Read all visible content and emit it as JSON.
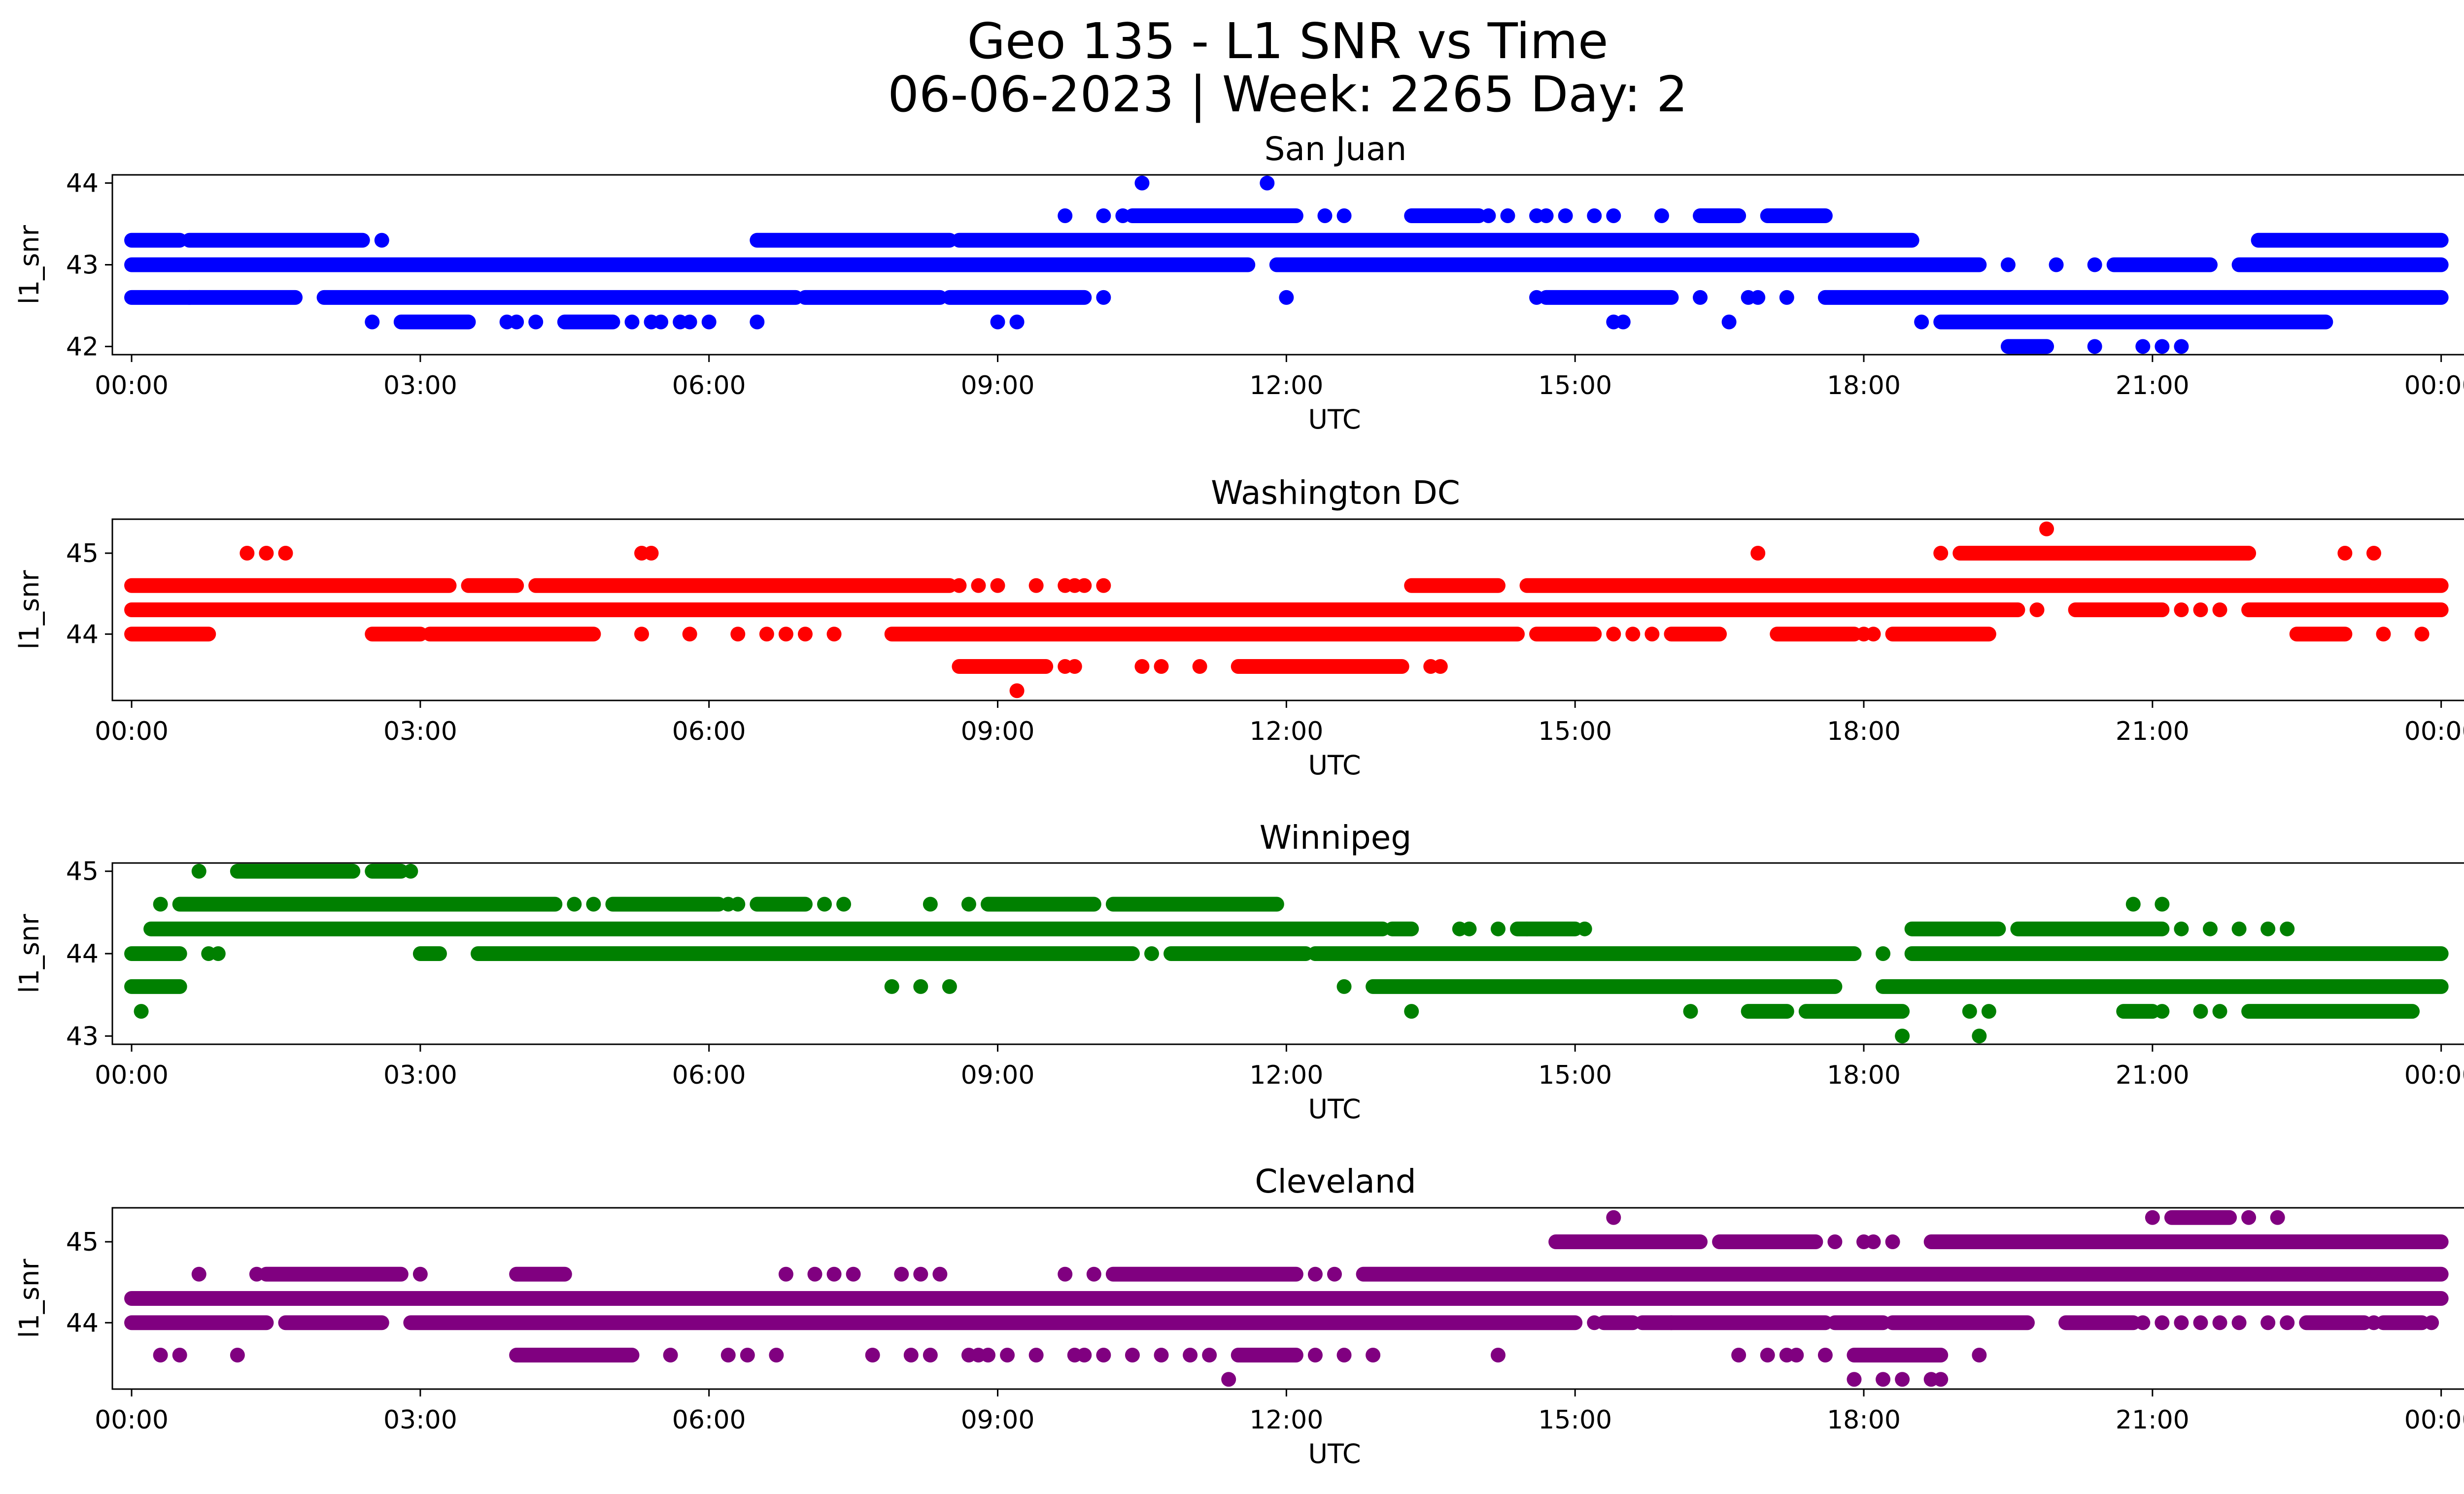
{
  "figure": {
    "title_line1": "Geo 135 - L1 SNR vs Time",
    "title_line2": "06-06-2023 | Week: 2265 Day: 2"
  },
  "chart_data": [
    {
      "type": "scatter",
      "title": "San Juan",
      "xlabel": "UTC",
      "ylabel": "l1_snr",
      "color": "#0000ff",
      "xlim": [
        -0.2,
        25.2
      ],
      "ylim": [
        41.9,
        44.1
      ],
      "xticks": [
        "00:00",
        "03:00",
        "06:00",
        "09:00",
        "12:00",
        "15:00",
        "18:00",
        "21:00",
        "00:00"
      ],
      "yticks": [
        42,
        43,
        44
      ],
      "levels": [
        {
          "y": 43.0,
          "intervals": [
            [
              0.0,
              11.6
            ],
            [
              11.9,
              19.2
            ],
            [
              20.6,
              21.6
            ],
            [
              21.9,
              24.0
            ]
          ],
          "points": [
            19.5,
            20.0,
            20.4
          ]
        },
        {
          "y": 42.6,
          "intervals": [
            [
              0.0,
              0.6
            ],
            [
              0.6,
              1.7
            ],
            [
              2.0,
              6.9
            ],
            [
              7.0,
              8.4
            ],
            [
              8.5,
              9.9
            ],
            [
              14.7,
              16.0
            ],
            [
              17.6,
              24.0
            ]
          ],
          "points": [
            10.1,
            12.0,
            14.6,
            16.3,
            16.8,
            16.9,
            17.2
          ]
        },
        {
          "y": 43.3,
          "intervals": [
            [
              0.0,
              0.5
            ],
            [
              0.6,
              2.4
            ],
            [
              6.5,
              8.5
            ],
            [
              8.6,
              18.5
            ],
            [
              22.1,
              24.0
            ]
          ],
          "points": [
            2.6
          ]
        },
        {
          "y": 43.6,
          "intervals": [
            [
              10.4,
              12.1
            ],
            [
              13.3,
              14.0
            ],
            [
              16.3,
              16.7
            ],
            [
              17.0,
              17.6
            ]
          ],
          "points": [
            9.7,
            10.1,
            10.3,
            12.4,
            12.6,
            13.5,
            14.1,
            14.3,
            14.6,
            14.7,
            14.9,
            15.2,
            15.4,
            15.9
          ]
        },
        {
          "y": 42.3,
          "intervals": [
            [
              2.8,
              3.5
            ],
            [
              4.5,
              5.0
            ],
            [
              18.8,
              22.8
            ]
          ],
          "points": [
            2.5,
            3.9,
            4.0,
            4.2,
            5.2,
            5.4,
            5.5,
            5.7,
            5.8,
            6.0,
            6.5,
            9.0,
            9.2,
            15.4,
            15.5,
            16.6,
            18.6
          ]
        },
        {
          "y": 42.0,
          "intervals": [
            [
              19.5,
              19.9
            ]
          ],
          "points": [
            20.4,
            20.9,
            21.1,
            21.3
          ]
        },
        {
          "y": 44.0,
          "intervals": [],
          "points": [
            10.5,
            11.8
          ]
        }
      ]
    },
    {
      "type": "scatter",
      "title": "Washington DC",
      "xlabel": "UTC",
      "ylabel": "l1_snr",
      "color": "#ff0000",
      "xlim": [
        -0.2,
        25.2
      ],
      "ylim": [
        43.18,
        45.42
      ],
      "xticks": [
        "00:00",
        "03:00",
        "06:00",
        "09:00",
        "12:00",
        "15:00",
        "18:00",
        "21:00",
        "00:00"
      ],
      "yticks": [
        44,
        45
      ],
      "levels": [
        {
          "y": 44.3,
          "intervals": [
            [
              0.0,
              19.6
            ],
            [
              20.2,
              21.1
            ],
            [
              22.0,
              24.0
            ]
          ],
          "points": [
            19.8,
            21.3,
            21.5,
            21.7
          ]
        },
        {
          "y": 44.6,
          "intervals": [
            [
              0.0,
              3.3
            ],
            [
              3.5,
              4.0
            ],
            [
              4.2,
              8.5
            ],
            [
              13.3,
              14.2
            ],
            [
              14.5,
              24.0
            ]
          ],
          "points": [
            8.6,
            8.8,
            9.0,
            9.4,
            9.7,
            9.8,
            9.9,
            10.1
          ]
        },
        {
          "y": 44.0,
          "intervals": [
            [
              0.0,
              0.8
            ],
            [
              2.5,
              3.0
            ],
            [
              3.1,
              4.8
            ],
            [
              7.9,
              14.4
            ],
            [
              14.6,
              15.2
            ],
            [
              16.0,
              16.5
            ],
            [
              17.1,
              17.9
            ],
            [
              18.3,
              19.3
            ],
            [
              22.5,
              23.0
            ]
          ],
          "points": [
            5.3,
            5.8,
            6.3,
            6.6,
            6.8,
            7.0,
            7.3,
            15.4,
            15.6,
            15.8,
            18.0,
            18.1,
            23.4,
            23.8
          ]
        },
        {
          "y": 45.0,
          "intervals": [
            [
              19.0,
              22.0
            ]
          ],
          "points": [
            1.2,
            1.4,
            1.6,
            5.3,
            5.4,
            16.9,
            18.8,
            23.0,
            23.3
          ]
        },
        {
          "y": 43.6,
          "intervals": [
            [
              8.6,
              9.5
            ],
            [
              11.5,
              13.2
            ]
          ],
          "points": [
            9.7,
            9.8,
            10.5,
            10.7,
            11.1,
            13.5,
            13.6
          ]
        },
        {
          "y": 43.3,
          "intervals": [],
          "points": [
            9.2
          ]
        },
        {
          "y": 45.3,
          "intervals": [],
          "points": [
            19.9
          ]
        }
      ]
    },
    {
      "type": "scatter",
      "title": "Winnipeg",
      "xlabel": "UTC",
      "ylabel": "l1_snr",
      "color": "#008000",
      "xlim": [
        -0.2,
        25.2
      ],
      "ylim": [
        42.9,
        45.1
      ],
      "xticks": [
        "00:00",
        "03:00",
        "06:00",
        "09:00",
        "12:00",
        "15:00",
        "18:00",
        "21:00",
        "00:00"
      ],
      "yticks": [
        43,
        44,
        45
      ],
      "levels": [
        {
          "y": 44.3,
          "intervals": [
            [
              0.2,
              13.0
            ],
            [
              13.1,
              13.3
            ],
            [
              14.4,
              15.0
            ],
            [
              18.5,
              19.4
            ],
            [
              19.6,
              21.1
            ]
          ],
          "points": [
            13.8,
            13.9,
            14.2,
            14.5,
            15.1,
            21.3,
            21.6,
            21.9,
            22.2,
            22.4
          ]
        },
        {
          "y": 44.0,
          "intervals": [
            [
              0.0,
              0.5
            ],
            [
              3.0,
              3.2
            ],
            [
              3.6,
              10.4
            ],
            [
              10.8,
              12.2
            ],
            [
              12.3,
              17.9
            ],
            [
              18.5,
              24.0
            ]
          ],
          "points": [
            0.8,
            0.9,
            10.6,
            11.2,
            11.4,
            18.2
          ]
        },
        {
          "y": 44.6,
          "intervals": [
            [
              0.5,
              4.4
            ],
            [
              5.0,
              6.1
            ],
            [
              6.5,
              7.0
            ],
            [
              8.9,
              10.0
            ],
            [
              10.2,
              11.9
            ]
          ],
          "points": [
            0.3,
            4.6,
            4.8,
            6.2,
            6.3,
            7.2,
            7.4,
            8.3,
            8.7,
            20.8,
            21.1
          ]
        },
        {
          "y": 45.0,
          "intervals": [
            [
              1.1,
              2.3
            ],
            [
              2.5,
              2.8
            ]
          ],
          "points": [
            0.7,
            2.9
          ]
        },
        {
          "y": 43.6,
          "intervals": [
            [
              0.0,
              0.5
            ],
            [
              12.9,
              17.7
            ],
            [
              18.2,
              24.0
            ]
          ],
          "points": [
            7.9,
            8.2,
            8.5,
            12.6
          ]
        },
        {
          "y": 43.3,
          "intervals": [
            [
              16.8,
              17.2
            ],
            [
              17.4,
              18.4
            ],
            [
              20.7,
              21.0
            ],
            [
              22.0,
              23.7
            ]
          ],
          "points": [
            0.1,
            13.3,
            16.2,
            19.1,
            19.3,
            21.1,
            21.5,
            21.7
          ]
        },
        {
          "y": 43.0,
          "intervals": [],
          "points": [
            18.4,
            19.2
          ]
        }
      ]
    },
    {
      "type": "scatter",
      "title": "Cleveland",
      "xlabel": "UTC",
      "ylabel": "l1_snr",
      "color": "#800080",
      "xlim": [
        -0.2,
        25.2
      ],
      "ylim": [
        43.18,
        45.42
      ],
      "xticks": [
        "00:00",
        "03:00",
        "06:00",
        "09:00",
        "12:00",
        "15:00",
        "18:00",
        "21:00",
        "00:00"
      ],
      "yticks": [
        44,
        45
      ],
      "levels": [
        {
          "y": 44.3,
          "intervals": [
            [
              0.0,
              24.0
            ]
          ],
          "points": []
        },
        {
          "y": 44.0,
          "intervals": [
            [
              0.0,
              1.4
            ],
            [
              1.6,
              2.6
            ],
            [
              2.9,
              15.0
            ],
            [
              15.3,
              15.6
            ],
            [
              15.7,
              17.6
            ],
            [
              17.7,
              18.2
            ],
            [
              18.3,
              19.7
            ],
            [
              20.1,
              20.8
            ],
            [
              22.6,
              23.2
            ],
            [
              23.4,
              23.8
            ]
          ],
          "points": [
            15.2,
            16.0,
            20.9,
            21.1,
            21.3,
            21.5,
            21.7,
            21.9,
            22.2,
            22.4,
            23.3,
            23.9
          ]
        },
        {
          "y": 44.6,
          "intervals": [
            [
              1.4,
              2.8
            ],
            [
              4.0,
              4.5
            ],
            [
              10.2,
              12.1
            ],
            [
              12.8,
              24.0
            ]
          ],
          "points": [
            0.7,
            1.3,
            3.0,
            6.8,
            7.1,
            7.3,
            7.5,
            8.0,
            8.2,
            8.4,
            9.7,
            10.0,
            12.3,
            12.5
          ]
        },
        {
          "y": 45.0,
          "intervals": [
            [
              14.8,
              16.3
            ],
            [
              16.5,
              17.5
            ],
            [
              18.7,
              24.0
            ]
          ],
          "points": [
            17.7,
            18.0,
            18.1,
            18.3
          ]
        },
        {
          "y": 43.6,
          "intervals": [
            [
              4.0,
              5.2
            ],
            [
              11.5,
              12.1
            ],
            [
              17.9,
              18.8
            ]
          ],
          "points": [
            0.3,
            0.5,
            1.1,
            5.6,
            6.2,
            6.4,
            6.7,
            7.7,
            8.1,
            8.3,
            8.7,
            8.8,
            8.9,
            9.1,
            9.4,
            9.8,
            9.9,
            10.1,
            10.4,
            10.7,
            11.0,
            11.2,
            12.3,
            12.6,
            12.9,
            14.2,
            16.7,
            17.0,
            17.2,
            17.3,
            17.6,
            19.2
          ]
        },
        {
          "y": 43.3,
          "intervals": [],
          "points": [
            11.4,
            17.9,
            18.2,
            18.4,
            18.7,
            18.8
          ]
        },
        {
          "y": 45.3,
          "intervals": [
            [
              21.2,
              21.8
            ]
          ],
          "points": [
            15.4,
            21.0,
            22.0,
            22.3
          ]
        }
      ]
    }
  ]
}
